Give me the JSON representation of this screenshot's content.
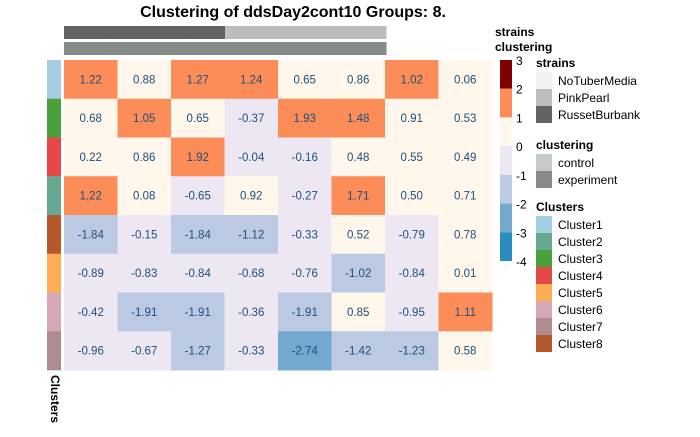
{
  "chart_data": {
    "type": "heatmap",
    "title": "Clustering of ddsDay2cont10 Groups: 8.",
    "rows": [
      "Cluster1",
      "Cluster2",
      "Cluster3",
      "Cluster4",
      "Cluster5",
      "Cluster6",
      "Cluster7",
      "Cluster8"
    ],
    "row_order": [
      "Cluster1",
      "Cluster3",
      "Cluster4",
      "Cluster2",
      "Cluster8",
      "Cluster5",
      "Cluster6",
      "Cluster7"
    ],
    "values": [
      [
        1.22,
        0.88,
        1.27,
        1.24,
        0.65,
        0.86,
        1.02,
        0.06
      ],
      [
        0.68,
        1.05,
        0.65,
        -0.37,
        1.93,
        1.48,
        0.91,
        0.53
      ],
      [
        0.22,
        0.86,
        1.92,
        -0.04,
        -0.16,
        0.48,
        0.55,
        0.49
      ],
      [
        1.22,
        0.08,
        -0.65,
        0.92,
        -0.27,
        1.71,
        0.5,
        0.71
      ],
      [
        -1.84,
        -0.15,
        -1.84,
        -1.12,
        -0.33,
        0.52,
        -0.79,
        0.78
      ],
      [
        -0.89,
        -0.83,
        -0.84,
        -0.68,
        -0.76,
        -1.02,
        -0.84,
        0.01
      ],
      [
        -0.42,
        -1.91,
        -1.91,
        -0.36,
        -1.91,
        0.85,
        -0.95,
        1.11
      ],
      [
        -0.96,
        -0.67,
        -1.27,
        -0.33,
        -2.74,
        -1.42,
        -1.23,
        0.58
      ]
    ],
    "column_annotations": [
      {
        "name": "strains",
        "values": [
          "RussetBurbank",
          "RussetBurbank",
          "RussetBurbank",
          "RussetBurbank",
          "PinkPearl",
          "PinkPearl",
          "PinkPearl",
          "PinkPearl"
        ]
      },
      {
        "name": "clustering",
        "values": [
          "experiment",
          "experiment",
          "experiment",
          "experiment",
          "experiment",
          "experiment",
          "experiment",
          "experiment"
        ]
      }
    ],
    "row_annotation_label": "Clusters",
    "color_scale": {
      "min": -4,
      "max": 3,
      "ticks": [
        3,
        2,
        1,
        0,
        -1,
        -2,
        -3,
        -4
      ],
      "bins": [
        {
          "lo": 2,
          "hi": 3,
          "color": "#7f0000"
        },
        {
          "lo": 1,
          "hi": 2,
          "color": "#fc8d59"
        },
        {
          "lo": 0,
          "hi": 1,
          "color": "#fff7ec"
        },
        {
          "lo": -1,
          "hi": 0,
          "color": "#ece7f2"
        },
        {
          "lo": -2,
          "hi": -1,
          "color": "#bcc9e3"
        },
        {
          "lo": -3,
          "hi": -2,
          "color": "#74a9cf"
        },
        {
          "lo": -4,
          "hi": -3,
          "color": "#2b8cbe"
        }
      ]
    },
    "cell_text_color": "#1f4e79",
    "legend": {
      "strains": {
        "title": "strains",
        "items": [
          {
            "label": "NoTuberMedia",
            "color": "#f2f2f2"
          },
          {
            "label": "PinkPearl",
            "color": "#bdbdbd"
          },
          {
            "label": "RussetBurbank",
            "color": "#636363"
          }
        ]
      },
      "clustering": {
        "title": "clustering",
        "items": [
          {
            "label": "control",
            "color": "#c3cbc7"
          },
          {
            "label": "experiment",
            "color": "#858b88"
          }
        ]
      },
      "clusters": {
        "title": "Clusters",
        "items": [
          {
            "label": "Cluster1",
            "color": "#a6cee3"
          },
          {
            "label": "Cluster2",
            "color": "#66a894"
          },
          {
            "label": "Cluster3",
            "color": "#4aa03a"
          },
          {
            "label": "Cluster4",
            "color": "#e44848"
          },
          {
            "label": "Cluster5",
            "color": "#fdae55"
          },
          {
            "label": "Cluster6",
            "color": "#d5a8b8"
          },
          {
            "label": "Cluster7",
            "color": "#ad8b91"
          },
          {
            "label": "Cluster8",
            "color": "#b5592c"
          }
        ]
      }
    },
    "annotation_row_labels": [
      "strains",
      "clustering"
    ]
  }
}
